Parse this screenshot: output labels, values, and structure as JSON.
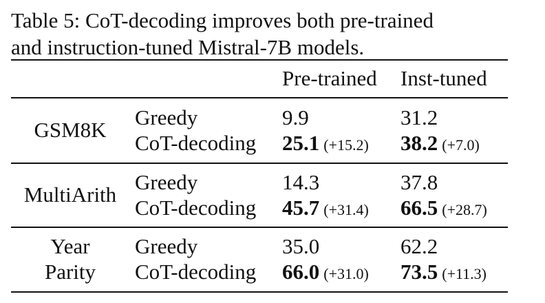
{
  "caption": {
    "line1": "Table 5: CoT-decoding improves both pre-trained",
    "line2": "and instruction-tuned Mistral-7B models."
  },
  "header": {
    "pretrained": "Pre-trained",
    "insttuned": "Inst-tuned"
  },
  "rows": [
    {
      "dataset_line1": "GSM8K",
      "dataset_line2": "",
      "greedy_label": "Greedy",
      "cot_label": "CoT-decoding",
      "greedy_pre": "9.9",
      "greedy_inst": "31.2",
      "cot_pre": "25.1",
      "cot_pre_delta": "(+15.2)",
      "cot_inst": "38.2",
      "cot_inst_delta": "(+7.0)"
    },
    {
      "dataset_line1": "MultiArith",
      "dataset_line2": "",
      "greedy_label": "Greedy",
      "cot_label": "CoT-decoding",
      "greedy_pre": "14.3",
      "greedy_inst": "37.8",
      "cot_pre": "45.7",
      "cot_pre_delta": "(+31.4)",
      "cot_inst": "66.5",
      "cot_inst_delta": "(+28.7)"
    },
    {
      "dataset_line1": "Year",
      "dataset_line2": "Parity",
      "greedy_label": "Greedy",
      "cot_label": "CoT-decoding",
      "greedy_pre": "35.0",
      "greedy_inst": "62.2",
      "cot_pre": "66.0",
      "cot_pre_delta": "(+31.0)",
      "cot_inst": "73.5",
      "cot_inst_delta": "(+11.3)"
    }
  ]
}
